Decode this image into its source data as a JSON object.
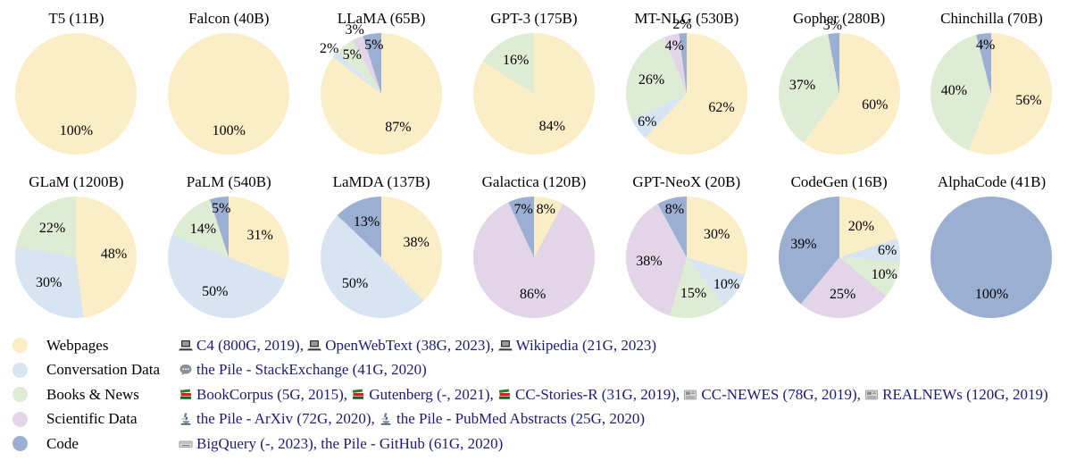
{
  "chart_data": {
    "type": "pie",
    "unit": "%",
    "categories": [
      "Webpages",
      "Conversation Data",
      "Books & News",
      "Scientific Data",
      "Code"
    ],
    "colors": {
      "Webpages": "#FBEEC6",
      "Conversation Data": "#D7E4F2",
      "Books & News": "#DFECD4",
      "Scientific Data": "#E2D5E7",
      "Code": "#9BAFD2"
    },
    "models": [
      {
        "name": "T5 (11B)",
        "slices": [
          {
            "category": "Webpages",
            "value": 100
          }
        ]
      },
      {
        "name": "Falcon (40B)",
        "slices": [
          {
            "category": "Webpages",
            "value": 100
          }
        ]
      },
      {
        "name": "LLaMA (65B)",
        "slices": [
          {
            "category": "Webpages",
            "value": 87
          },
          {
            "category": "Conversation Data",
            "value": 2
          },
          {
            "category": "Books & News",
            "value": 5
          },
          {
            "category": "Scientific Data",
            "value": 3
          },
          {
            "category": "Code",
            "value": 5
          }
        ]
      },
      {
        "name": "GPT-3 (175B)",
        "slices": [
          {
            "category": "Webpages",
            "value": 84
          },
          {
            "category": "Books & News",
            "value": 16
          }
        ]
      },
      {
        "name": "MT-NLG (530B)",
        "slices": [
          {
            "category": "Webpages",
            "value": 62
          },
          {
            "category": "Conversation Data",
            "value": 6
          },
          {
            "category": "Books & News",
            "value": 26
          },
          {
            "category": "Scientific Data",
            "value": 4
          },
          {
            "category": "Code",
            "value": 2
          }
        ]
      },
      {
        "name": "Gopher (280B)",
        "slices": [
          {
            "category": "Webpages",
            "value": 60
          },
          {
            "category": "Books & News",
            "value": 37
          },
          {
            "category": "Code",
            "value": 3
          }
        ]
      },
      {
        "name": "Chinchilla (70B)",
        "slices": [
          {
            "category": "Webpages",
            "value": 56
          },
          {
            "category": "Books & News",
            "value": 40
          },
          {
            "category": "Code",
            "value": 4
          }
        ]
      },
      {
        "name": "GLaM (1200B)",
        "slices": [
          {
            "category": "Webpages",
            "value": 48
          },
          {
            "category": "Conversation Data",
            "value": 30
          },
          {
            "category": "Books & News",
            "value": 22
          }
        ]
      },
      {
        "name": "PaLM (540B)",
        "slices": [
          {
            "category": "Webpages",
            "value": 31
          },
          {
            "category": "Conversation Data",
            "value": 50
          },
          {
            "category": "Books & News",
            "value": 14
          },
          {
            "category": "Code",
            "value": 5
          }
        ]
      },
      {
        "name": "LaMDA (137B)",
        "slices": [
          {
            "category": "Webpages",
            "value": 38
          },
          {
            "category": "Conversation Data",
            "value": 50
          },
          {
            "category": "Code",
            "value": 13
          }
        ]
      },
      {
        "name": "Galactica (120B)",
        "slices": [
          {
            "category": "Webpages",
            "value": 8
          },
          {
            "category": "Scientific Data",
            "value": 86
          },
          {
            "category": "Code",
            "value": 7
          }
        ]
      },
      {
        "name": "GPT-NeoX (20B)",
        "slices": [
          {
            "category": "Webpages",
            "value": 30
          },
          {
            "category": "Conversation Data",
            "value": 10
          },
          {
            "category": "Books & News",
            "value": 15
          },
          {
            "category": "Scientific Data",
            "value": 38
          },
          {
            "category": "Code",
            "value": 8
          }
        ]
      },
      {
        "name": "CodeGen (16B)",
        "slices": [
          {
            "category": "Webpages",
            "value": 20
          },
          {
            "category": "Conversation Data",
            "value": 6
          },
          {
            "category": "Books & News",
            "value": 10
          },
          {
            "category": "Scientific Data",
            "value": 25
          },
          {
            "category": "Code",
            "value": 39
          }
        ]
      },
      {
        "name": "AlphaCode (41B)",
        "slices": [
          {
            "category": "Code",
            "value": 100
          }
        ]
      }
    ]
  },
  "legend": {
    "rows": [
      {
        "category": "Webpages",
        "sources": [
          {
            "icon": "laptop-icon",
            "text": "C4 (800G, 2019), "
          },
          {
            "icon": "laptop-icon",
            "text": "OpenWebText (38G, 2023), "
          },
          {
            "icon": "laptop-icon",
            "text": "Wikipedia (21G, 2023)"
          }
        ]
      },
      {
        "category": "Conversation Data",
        "sources": [
          {
            "icon": "speech-bubble-icon",
            "text": "the Pile - StackExchange (41G, 2020)"
          }
        ]
      },
      {
        "category": "Books & News",
        "sources": [
          {
            "icon": "books-icon",
            "text": "BookCorpus (5G, 2015), "
          },
          {
            "icon": "books-icon",
            "text": "Gutenberg (-, 2021), "
          },
          {
            "icon": "books-icon",
            "text": "CC-Stories-R (31G, 2019), "
          },
          {
            "icon": "newspaper-icon",
            "text": "CC-NEWES (78G, 2019), "
          },
          {
            "icon": "newspaper-icon",
            "text": "REALNEWs (120G, 2019)"
          }
        ]
      },
      {
        "category": "Scientific Data",
        "sources": [
          {
            "icon": "microscope-icon",
            "text": "the Pile - ArXiv (72G, 2020), "
          },
          {
            "icon": "microscope-icon",
            "text": "the Pile - PubMed Abstracts (25G, 2020)"
          }
        ]
      },
      {
        "category": "Code",
        "sources": [
          {
            "icon": "keyboard-icon",
            "text": "BigQuery (-, 2023), the Pile - GitHub (61G, 2020)"
          }
        ]
      }
    ]
  }
}
